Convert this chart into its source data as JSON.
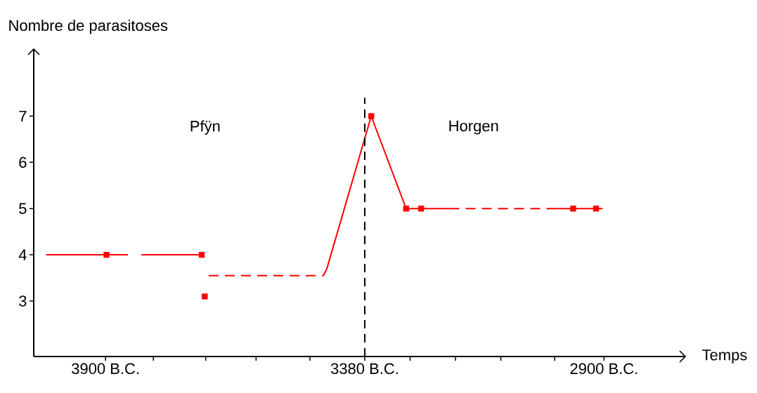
{
  "chart_data": {
    "type": "line",
    "xlabel": "Temps",
    "ylabel": "Nombre de parasitoses",
    "xlim": [
      -4044,
      -2737
    ],
    "ylim": [
      1.8,
      8.45
    ],
    "xticks": [
      {
        "value": -3900,
        "label": "3900 B.C."
      },
      {
        "value": -3804,
        "label": null
      },
      {
        "value": -3699,
        "label": null
      },
      {
        "value": -3598,
        "label": null
      },
      {
        "value": -3490,
        "label": null
      },
      {
        "value": -3380,
        "label": "3380 B.C."
      },
      {
        "value": -3289,
        "label": null
      },
      {
        "value": -3198,
        "label": null
      },
      {
        "value": -3107,
        "label": null
      },
      {
        "value": -2999,
        "label": null
      },
      {
        "value": -2900,
        "label": "2900 B.C."
      }
    ],
    "yticks": [
      3,
      4,
      5,
      6,
      7
    ],
    "series": [
      {
        "color": "#ff0000",
        "line_style": "solid",
        "marker": "none",
        "x": [
          -4019,
          -3898,
          -3855
        ],
        "values": [
          4,
          4,
          4
        ]
      },
      {
        "color": "#ff0000",
        "line_style": "solid",
        "marker": "none",
        "x": [
          -3828,
          -3707
        ],
        "values": [
          4,
          4
        ]
      },
      {
        "color": "#ff0000",
        "line_style": "dashed",
        "marker": "none",
        "x": [
          -3693,
          -3463
        ],
        "values": [
          3.55,
          3.55
        ]
      },
      {
        "color": "#ff0000",
        "line_style": "solid",
        "marker": "none",
        "x": [
          -3463,
          -3456,
          -3367,
          -3297,
          -3267,
          -3210
        ],
        "values": [
          3.55,
          3.7,
          7,
          5,
          5,
          5
        ]
      },
      {
        "color": "#ff0000",
        "line_style": "dashed",
        "marker": "none",
        "x": [
          -3210,
          -2997
        ],
        "values": [
          5,
          5
        ]
      },
      {
        "color": "#ff0000",
        "line_style": "solid",
        "marker": "none",
        "x": [
          -2997,
          -2962,
          -2916,
          -2903
        ],
        "values": [
          5,
          5,
          5,
          5
        ]
      },
      {
        "type": "scatter",
        "color": "#ff0000",
        "marker": "square",
        "x": [
          -3898,
          -3707,
          -3701,
          -3367,
          -3297,
          -3267,
          -2962,
          -2916
        ],
        "values": [
          4,
          4,
          3.1,
          7,
          5,
          5,
          5,
          5
        ]
      }
    ],
    "ref_lines": [
      {
        "axis": "x",
        "value": -3380,
        "color": "#000000",
        "line_style": "dashed"
      }
    ],
    "annotations": [
      "Pfÿn",
      "Horgen"
    ]
  }
}
